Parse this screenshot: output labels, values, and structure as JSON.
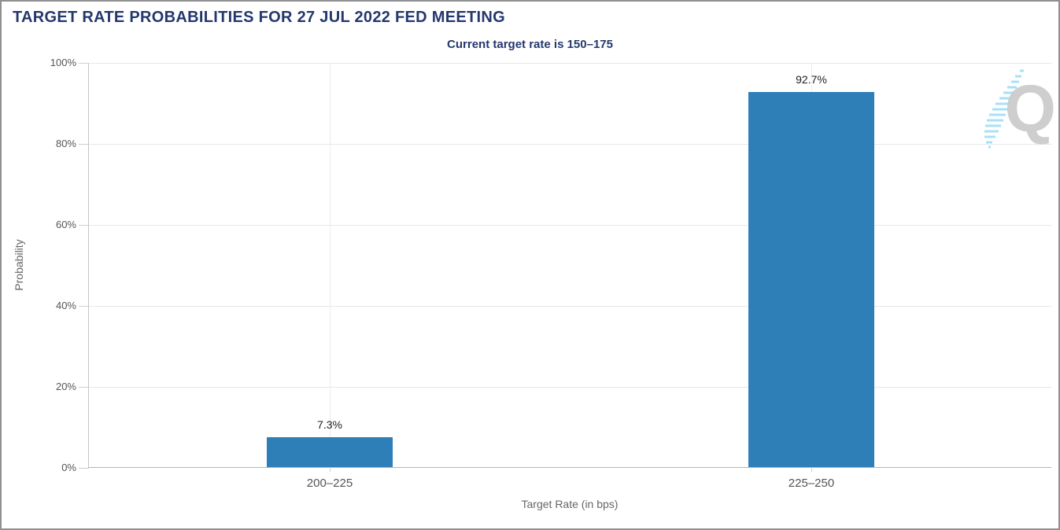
{
  "chart_data": {
    "type": "bar",
    "title": "TARGET RATE PROBABILITIES FOR 27 JUL 2022 FED MEETING",
    "subtitle": "Current target rate is 150–175",
    "categories": [
      "200–225",
      "225–250"
    ],
    "values": [
      7.3,
      92.7
    ],
    "value_labels": [
      "7.3%",
      "92.7%"
    ],
    "xlabel": "Target Rate (in bps)",
    "ylabel": "Probability",
    "ylim": [
      0,
      100
    ],
    "yticks": [
      0,
      20,
      40,
      60,
      80,
      100
    ],
    "ytick_labels": [
      "0%",
      "20%",
      "40%",
      "60%",
      "80%",
      "100%"
    ],
    "grid": true,
    "legend": "none",
    "bar_color": "#2E7EB8"
  },
  "colors": {
    "title_navy": "#24386E",
    "bar_blue": "#2E7EB8",
    "gridline": "#E8E8E8",
    "axis_line": "#B5B5B5",
    "tick_text": "#555555",
    "axis_title_text": "#666666",
    "watermark_grey": "#C9C9C9",
    "watermark_cyan": "#A8E0F7"
  },
  "watermark": {
    "letter": "Q"
  }
}
